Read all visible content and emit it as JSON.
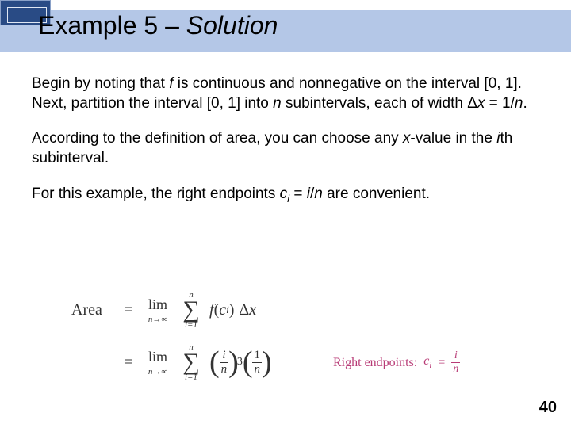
{
  "colors": {
    "title_band_bg": "#b4c7e7",
    "title_tab_bg": "#294b85",
    "rep_color": "#b83b76",
    "text_color": "#000000",
    "eq_color": "#333333"
  },
  "title": {
    "prefix": "Example 5 – ",
    "suffix": "Solution"
  },
  "para1": {
    "a": "Begin by noting that ",
    "f": "f",
    "b": " is continuous and nonnegative on the interval [0, 1]. Next, partition the interval [0, 1] into ",
    "n": "n",
    "c": " subintervals, each of width Δ",
    "x": "x",
    "d": " = 1/",
    "n2": "n",
    "e": "."
  },
  "para2": {
    "a": "According to the definition of area, you can choose any ",
    "x": "x",
    "b": "-value  in the ",
    "i": "i",
    "c": "th subinterval."
  },
  "para3": {
    "a": "For this example, the right endpoints ",
    "c": "c",
    "isub": "i",
    "b": " = ",
    "inum": "i",
    "slash": "/",
    "nden": "n",
    "d": " are convenient."
  },
  "eq": {
    "area": "Area",
    "eq": "=",
    "lim": "lim",
    "lim_sub_n": "n",
    "lim_sub_arrow": "→",
    "lim_sub_inf": "∞",
    "sum_top": "n",
    "sigma": "∑",
    "sum_bottom": "i=1",
    "row1": {
      "f": "f",
      "open": "(",
      "c": "c",
      "ci": "i",
      "close": ")",
      "dx_delta": "Δ",
      "dx_x": "x"
    },
    "row2": {
      "p1_top": "i",
      "p1_bot": "n",
      "cube": "3",
      "p2_top": "1",
      "p2_bot": "n"
    }
  },
  "rep": {
    "label": "Right endpoints:  ",
    "c": "c",
    "ci": "i",
    "eq": " = ",
    "top": "i",
    "bot": "n"
  },
  "page_number": "40"
}
